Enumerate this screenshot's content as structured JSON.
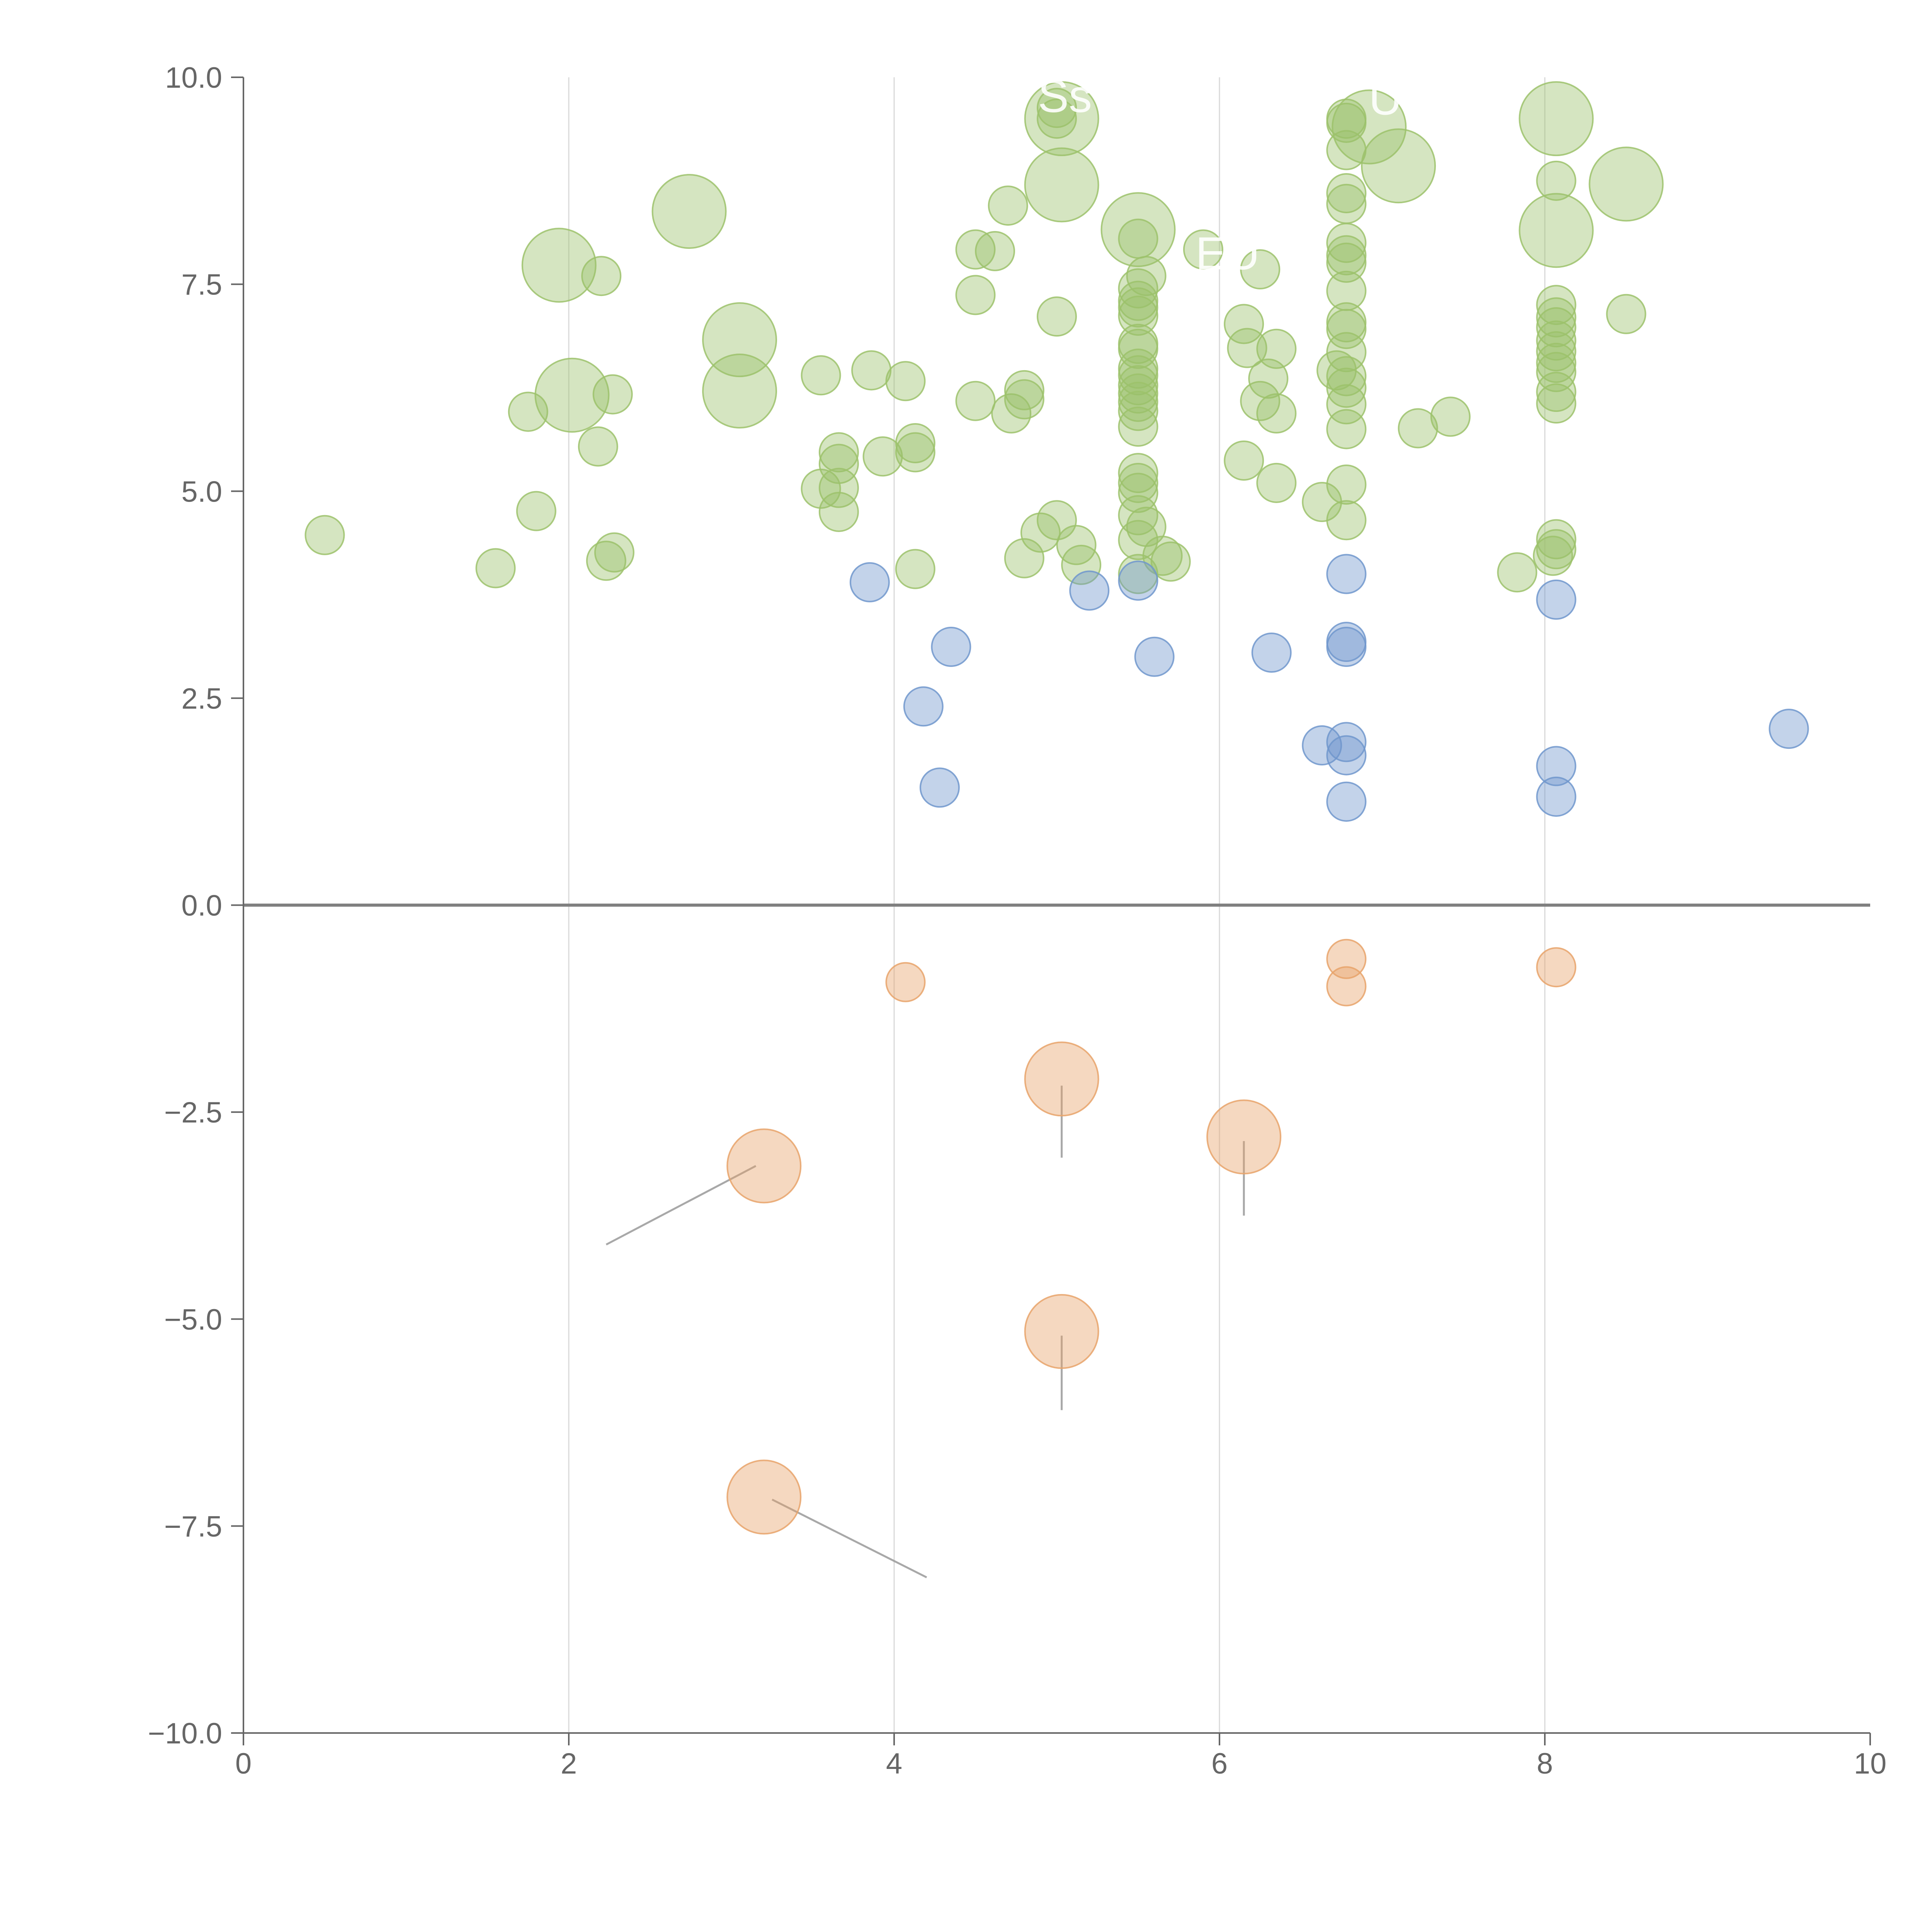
{
  "chart_data": {
    "type": "scatter",
    "title": "",
    "xlabel": "",
    "ylabel": "",
    "xlim": [
      0,
      10
    ],
    "ylim": [
      -10,
      10
    ],
    "x_ticks": [
      "0",
      "2",
      "4",
      "6",
      "8",
      "10"
    ],
    "x_tick_values": [
      0,
      2,
      4,
      6,
      8,
      10
    ],
    "y_ticks": [
      "10.0",
      "7.5",
      "5.0",
      "2.5",
      "0.0",
      "−2.5",
      "−5.0",
      "−7.5",
      "−10.0"
    ],
    "y_tick_values": [
      10,
      7.5,
      5,
      2.5,
      0,
      -2.5,
      -5,
      -7.5,
      -10
    ],
    "grid": "vertical",
    "zero_line": true,
    "colors": {
      "green": "#9cc26b",
      "blue": "#7096cc",
      "orange": "#e8a36a",
      "axis": "#666666",
      "grid": "#d9d9d9",
      "zero": "#7f7f7f",
      "leader_dark": "#999999",
      "leader_light": "#ffffff"
    },
    "series": [
      {
        "name": "green",
        "color": "#9cc26b",
        "points": [
          {
            "x": 0.5,
            "y": 4.47,
            "s": 1
          },
          {
            "x": 1.55,
            "y": 4.07,
            "s": 1
          },
          {
            "x": 1.8,
            "y": 4.76,
            "s": 1
          },
          {
            "x": 1.75,
            "y": 5.96,
            "s": 1
          },
          {
            "x": 1.94,
            "y": 7.73,
            "s": 2.5
          },
          {
            "x": 2.2,
            "y": 7.6,
            "s": 1
          },
          {
            "x": 2.02,
            "y": 6.16,
            "s": 2.5
          },
          {
            "x": 2.27,
            "y": 6.17,
            "s": 1
          },
          {
            "x": 2.18,
            "y": 5.54,
            "s": 1
          },
          {
            "x": 2.23,
            "y": 4.16,
            "s": 1
          },
          {
            "x": 2.28,
            "y": 4.26,
            "s": 1
          },
          {
            "x": 2.74,
            "y": 8.38,
            "s": 2.5
          },
          {
            "x": 3.05,
            "y": 6.83,
            "s": 2.5
          },
          {
            "x": 3.05,
            "y": 6.21,
            "s": 2.5
          },
          {
            "x": 3.55,
            "y": 6.4,
            "s": 1
          },
          {
            "x": 3.55,
            "y": 5.03,
            "s": 1
          },
          {
            "x": 3.66,
            "y": 5.47,
            "s": 1
          },
          {
            "x": 3.66,
            "y": 5.33,
            "s": 1
          },
          {
            "x": 3.66,
            "y": 5.04,
            "s": 1
          },
          {
            "x": 3.66,
            "y": 4.75,
            "s": 1
          },
          {
            "x": 3.86,
            "y": 6.46,
            "s": 1
          },
          {
            "x": 3.93,
            "y": 5.42,
            "s": 1
          },
          {
            "x": 4.07,
            "y": 6.33,
            "s": 1
          },
          {
            "x": 4.13,
            "y": 5.58,
            "s": 1
          },
          {
            "x": 4.13,
            "y": 5.47,
            "s": 1
          },
          {
            "x": 4.13,
            "y": 4.06,
            "s": 1
          },
          {
            "x": 4.5,
            "y": 7.92,
            "s": 1
          },
          {
            "x": 4.5,
            "y": 7.37,
            "s": 1
          },
          {
            "x": 4.5,
            "y": 6.09,
            "s": 1
          },
          {
            "x": 4.62,
            "y": 7.9,
            "s": 1
          },
          {
            "x": 4.7,
            "y": 8.45,
            "s": 1
          },
          {
            "x": 4.72,
            "y": 5.94,
            "s": 1
          },
          {
            "x": 4.8,
            "y": 6.22,
            "s": 1
          },
          {
            "x": 4.8,
            "y": 6.11,
            "s": 1
          },
          {
            "x": 4.8,
            "y": 4.19,
            "s": 1
          },
          {
            "x": 4.9,
            "y": 4.5,
            "s": 1
          },
          {
            "x": 5.03,
            "y": 9.5,
            "s": 2.5
          },
          {
            "x": 5.03,
            "y": 8.7,
            "s": 2.5
          },
          {
            "x": 5.0,
            "y": 9.63,
            "s": 1
          },
          {
            "x": 5.0,
            "y": 9.5,
            "s": 1
          },
          {
            "x": 5.0,
            "y": 7.11,
            "s": 1
          },
          {
            "x": 5.0,
            "y": 4.65,
            "s": 1
          },
          {
            "x": 5.12,
            "y": 4.35,
            "s": 1
          },
          {
            "x": 5.15,
            "y": 4.11,
            "s": 1
          },
          {
            "x": 5.5,
            "y": 8.16,
            "s": 2.5
          },
          {
            "x": 5.5,
            "y": 8.05,
            "s": 1
          },
          {
            "x": 5.55,
            "y": 7.6,
            "s": 1
          },
          {
            "x": 5.5,
            "y": 7.45,
            "s": 1
          },
          {
            "x": 5.5,
            "y": 7.3,
            "s": 1
          },
          {
            "x": 5.5,
            "y": 7.22,
            "s": 1
          },
          {
            "x": 5.5,
            "y": 7.12,
            "s": 1
          },
          {
            "x": 5.5,
            "y": 6.78,
            "s": 1
          },
          {
            "x": 5.5,
            "y": 6.72,
            "s": 1
          },
          {
            "x": 5.5,
            "y": 6.48,
            "s": 1
          },
          {
            "x": 5.5,
            "y": 6.4,
            "s": 1
          },
          {
            "x": 5.5,
            "y": 6.28,
            "s": 1
          },
          {
            "x": 5.5,
            "y": 6.18,
            "s": 1
          },
          {
            "x": 5.5,
            "y": 6.08,
            "s": 1
          },
          {
            "x": 5.5,
            "y": 5.97,
            "s": 1
          },
          {
            "x": 5.5,
            "y": 5.78,
            "s": 1
          },
          {
            "x": 5.5,
            "y": 5.22,
            "s": 1
          },
          {
            "x": 5.5,
            "y": 5.1,
            "s": 1
          },
          {
            "x": 5.5,
            "y": 4.98,
            "s": 1
          },
          {
            "x": 5.5,
            "y": 4.71,
            "s": 1
          },
          {
            "x": 5.55,
            "y": 4.57,
            "s": 1
          },
          {
            "x": 5.5,
            "y": 4.41,
            "s": 1
          },
          {
            "x": 5.5,
            "y": 4.0,
            "s": 1
          },
          {
            "x": 5.65,
            "y": 4.22,
            "s": 1
          },
          {
            "x": 5.7,
            "y": 4.15,
            "s": 1
          },
          {
            "x": 5.9,
            "y": 7.92,
            "s": 1
          },
          {
            "x": 6.15,
            "y": 7.02,
            "s": 1
          },
          {
            "x": 6.17,
            "y": 6.73,
            "s": 1
          },
          {
            "x": 6.15,
            "y": 5.37,
            "s": 1
          },
          {
            "x": 6.25,
            "y": 6.09,
            "s": 1
          },
          {
            "x": 6.3,
            "y": 6.36,
            "s": 1
          },
          {
            "x": 6.35,
            "y": 6.72,
            "s": 1
          },
          {
            "x": 6.35,
            "y": 5.94,
            "s": 1
          },
          {
            "x": 6.35,
            "y": 5.1,
            "s": 1
          },
          {
            "x": 6.63,
            "y": 4.87,
            "s": 1
          },
          {
            "x": 6.78,
            "y": 9.5,
            "s": 1
          },
          {
            "x": 6.78,
            "y": 9.45,
            "s": 1
          },
          {
            "x": 6.78,
            "y": 9.12,
            "s": 1
          },
          {
            "x": 6.92,
            "y": 9.4,
            "s": 2.5
          },
          {
            "x": 7.1,
            "y": 8.93,
            "s": 2.5
          },
          {
            "x": 6.78,
            "y": 8.6,
            "s": 1
          },
          {
            "x": 6.78,
            "y": 8.47,
            "s": 1
          },
          {
            "x": 6.78,
            "y": 8.0,
            "s": 1
          },
          {
            "x": 6.78,
            "y": 7.85,
            "s": 1
          },
          {
            "x": 6.78,
            "y": 7.76,
            "s": 1
          },
          {
            "x": 6.78,
            "y": 7.42,
            "s": 1
          },
          {
            "x": 6.78,
            "y": 7.04,
            "s": 1
          },
          {
            "x": 6.78,
            "y": 6.96,
            "s": 1
          },
          {
            "x": 6.78,
            "y": 6.68,
            "s": 1
          },
          {
            "x": 6.72,
            "y": 6.46,
            "s": 1
          },
          {
            "x": 6.78,
            "y": 6.39,
            "s": 1
          },
          {
            "x": 6.78,
            "y": 6.25,
            "s": 1
          },
          {
            "x": 6.78,
            "y": 6.05,
            "s": 1
          },
          {
            "x": 6.78,
            "y": 5.75,
            "s": 1
          },
          {
            "x": 6.78,
            "y": 5.08,
            "s": 1
          },
          {
            "x": 6.78,
            "y": 4.65,
            "s": 1
          },
          {
            "x": 7.22,
            "y": 5.76,
            "s": 1
          },
          {
            "x": 7.42,
            "y": 5.9,
            "s": 1
          },
          {
            "x": 7.83,
            "y": 4.02,
            "s": 1
          },
          {
            "x": 8.07,
            "y": 9.5,
            "s": 2.5
          },
          {
            "x": 8.07,
            "y": 8.15,
            "s": 2.5
          },
          {
            "x": 8.5,
            "y": 8.71,
            "s": 2.5
          },
          {
            "x": 8.07,
            "y": 8.75,
            "s": 1
          },
          {
            "x": 8.07,
            "y": 7.25,
            "s": 1
          },
          {
            "x": 8.07,
            "y": 7.1,
            "s": 1
          },
          {
            "x": 8.07,
            "y": 6.98,
            "s": 1
          },
          {
            "x": 8.07,
            "y": 6.82,
            "s": 1
          },
          {
            "x": 8.07,
            "y": 6.69,
            "s": 1
          },
          {
            "x": 8.07,
            "y": 6.55,
            "s": 1
          },
          {
            "x": 8.07,
            "y": 6.44,
            "s": 1
          },
          {
            "x": 8.07,
            "y": 6.2,
            "s": 1
          },
          {
            "x": 8.07,
            "y": 6.06,
            "s": 1
          },
          {
            "x": 8.07,
            "y": 4.42,
            "s": 1
          },
          {
            "x": 8.07,
            "y": 4.3,
            "s": 1
          },
          {
            "x": 8.05,
            "y": 4.22,
            "s": 1
          },
          {
            "x": 8.5,
            "y": 7.14,
            "s": 1
          },
          {
            "x": 6.25,
            "y": 7.68,
            "s": 1
          }
        ]
      },
      {
        "name": "blue",
        "color": "#7096cc",
        "points": [
          {
            "x": 3.85,
            "y": 3.9,
            "s": 1
          },
          {
            "x": 4.35,
            "y": 3.12,
            "s": 1
          },
          {
            "x": 4.18,
            "y": 2.4,
            "s": 1
          },
          {
            "x": 4.28,
            "y": 1.42,
            "s": 1
          },
          {
            "x": 5.2,
            "y": 3.8,
            "s": 1
          },
          {
            "x": 5.5,
            "y": 3.92,
            "s": 1
          },
          {
            "x": 5.6,
            "y": 3.0,
            "s": 1
          },
          {
            "x": 6.32,
            "y": 3.05,
            "s": 1
          },
          {
            "x": 6.63,
            "y": 1.93,
            "s": 1
          },
          {
            "x": 6.78,
            "y": 4.0,
            "s": 1
          },
          {
            "x": 6.78,
            "y": 3.18,
            "s": 1
          },
          {
            "x": 6.78,
            "y": 3.12,
            "s": 1
          },
          {
            "x": 6.78,
            "y": 1.97,
            "s": 1
          },
          {
            "x": 6.78,
            "y": 1.81,
            "s": 1
          },
          {
            "x": 6.78,
            "y": 1.25,
            "s": 1
          },
          {
            "x": 8.07,
            "y": 3.69,
            "s": 1
          },
          {
            "x": 8.07,
            "y": 1.68,
            "s": 1
          },
          {
            "x": 8.07,
            "y": 1.31,
            "s": 1
          },
          {
            "x": 9.5,
            "y": 2.13,
            "s": 1
          }
        ]
      },
      {
        "name": "orange",
        "color": "#e8a36a",
        "points": [
          {
            "x": 4.07,
            "y": -0.93,
            "s": 1
          },
          {
            "x": 6.78,
            "y": -0.65,
            "s": 1
          },
          {
            "x": 6.78,
            "y": -0.98,
            "s": 1
          },
          {
            "x": 8.07,
            "y": -0.75,
            "s": 1
          },
          {
            "x": 5.03,
            "y": -2.1,
            "s": 2.5
          },
          {
            "x": 6.15,
            "y": -2.8,
            "s": 2.5
          },
          {
            "x": 3.2,
            "y": -3.15,
            "s": 2.5
          },
          {
            "x": 5.03,
            "y": -5.15,
            "s": 2.5
          },
          {
            "x": 3.2,
            "y": -7.15,
            "s": 2.5
          }
        ]
      }
    ],
    "leaders": [
      {
        "x1": 3.15,
        "y1": -3.15,
        "x2": 2.23,
        "y2": -4.1,
        "tone": "dark"
      },
      {
        "x1": 5.03,
        "y1": -2.18,
        "x2": 5.03,
        "y2": -3.05,
        "tone": "dark"
      },
      {
        "x1": 6.15,
        "y1": -2.85,
        "x2": 6.15,
        "y2": -3.75,
        "tone": "dark"
      },
      {
        "x1": 5.03,
        "y1": -5.2,
        "x2": 5.03,
        "y2": -6.1,
        "tone": "dark"
      },
      {
        "x1": 3.25,
        "y1": -7.18,
        "x2": 4.2,
        "y2": -8.12,
        "tone": "dark"
      },
      {
        "x1": 1.94,
        "y1": 7.73,
        "x2": 1.88,
        "y2": 7.58,
        "tone": "light"
      },
      {
        "x1": 2.05,
        "y1": 6.2,
        "x2": 2.2,
        "y2": 6.05,
        "tone": "light"
      },
      {
        "x1": 2.74,
        "y1": 8.38,
        "x2": 2.85,
        "y2": 8.55,
        "tone": "light"
      },
      {
        "x1": 3.05,
        "y1": 6.21,
        "x2": 3.22,
        "y2": 6.05,
        "tone": "light"
      },
      {
        "x1": 5.03,
        "y1": 8.7,
        "x2": 5.18,
        "y2": 8.88,
        "tone": "light"
      },
      {
        "x1": 5.5,
        "y1": 8.16,
        "x2": 5.65,
        "y2": 8.05,
        "tone": "light"
      },
      {
        "x1": 7.1,
        "y1": 8.93,
        "x2": 7.12,
        "y2": 8.78,
        "tone": "light"
      },
      {
        "x1": 8.07,
        "y1": 9.5,
        "x2": 8.28,
        "y2": 9.55,
        "tone": "light"
      },
      {
        "x1": 8.07,
        "y1": 8.15,
        "x2": 8.3,
        "y2": 8.1,
        "tone": "light"
      },
      {
        "x1": 8.5,
        "y1": 8.71,
        "x2": 8.65,
        "y2": 8.9,
        "tone": "light"
      }
    ],
    "annotations": [
      {
        "text": "Ss",
        "x": 5.05,
        "y": 9.58
      },
      {
        "text": "U",
        "x": 7.02,
        "y": 9.55
      },
      {
        "text": "EU",
        "x": 6.05,
        "y": 7.68
      }
    ]
  }
}
